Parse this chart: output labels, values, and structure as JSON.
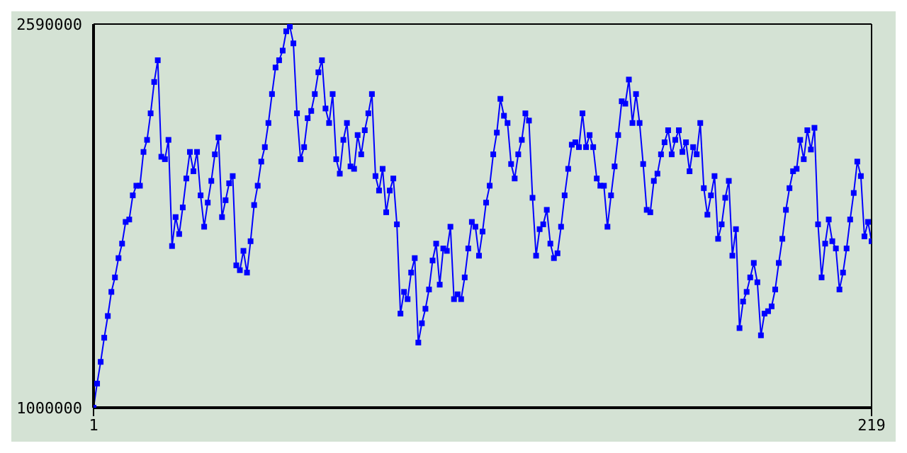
{
  "chart_data": {
    "type": "line",
    "x": [
      1,
      2,
      3,
      4,
      5,
      6,
      7,
      8,
      9,
      10,
      11,
      12,
      13,
      14,
      15,
      16,
      17,
      18,
      19,
      20,
      21,
      22,
      23,
      24,
      25,
      26,
      27,
      28,
      29,
      30,
      31,
      32,
      33,
      34,
      35,
      36,
      37,
      38,
      39,
      40,
      41,
      42,
      43,
      44,
      45,
      46,
      47,
      48,
      49,
      50,
      51,
      52,
      53,
      54,
      55,
      56,
      57,
      58,
      59,
      60,
      61,
      62,
      63,
      64,
      65,
      66,
      67,
      68,
      69,
      70,
      71,
      72,
      73,
      74,
      75,
      76,
      77,
      78,
      79,
      80,
      81,
      82,
      83,
      84,
      85,
      86,
      87,
      88,
      89,
      90,
      91,
      92,
      93,
      94,
      95,
      96,
      97,
      98,
      99,
      100,
      101,
      102,
      103,
      104,
      105,
      106,
      107,
      108,
      109,
      110,
      111,
      112,
      113,
      114,
      115,
      116,
      117,
      118,
      119,
      120,
      121,
      122,
      123,
      124,
      125,
      126,
      127,
      128,
      129,
      130,
      131,
      132,
      133,
      134,
      135,
      136,
      137,
      138,
      139,
      140,
      141,
      142,
      143,
      144,
      145,
      146,
      147,
      148,
      149,
      150,
      151,
      152,
      153,
      154,
      155,
      156,
      157,
      158,
      159,
      160,
      161,
      162,
      163,
      164,
      165,
      166,
      167,
      168,
      169,
      170,
      171,
      172,
      173,
      174,
      175,
      176,
      177,
      178,
      179,
      180,
      181,
      182,
      183,
      184,
      185,
      186,
      187,
      188,
      189,
      190,
      191,
      192,
      193,
      194,
      195,
      196,
      197,
      198,
      199,
      200,
      201,
      202,
      203,
      204,
      205,
      206,
      207,
      208,
      209,
      210,
      211,
      212,
      213,
      214,
      215,
      216,
      217,
      218,
      219
    ],
    "series": [
      {
        "color": "#0000ff",
        "values": [
          1000000,
          1100000,
          1190000,
          1290000,
          1380000,
          1480000,
          1540000,
          1620000,
          1680000,
          1770000,
          1780000,
          1880000,
          1920000,
          1920000,
          2060000,
          2110000,
          2220000,
          2350000,
          2440000,
          2040000,
          2030000,
          2110000,
          1670000,
          1790000,
          1720000,
          1830000,
          1950000,
          2060000,
          1980000,
          2060000,
          1880000,
          1750000,
          1850000,
          1940000,
          2050000,
          2120000,
          1790000,
          1860000,
          1930000,
          1960000,
          1590000,
          1570000,
          1650000,
          1560000,
          1690000,
          1840000,
          1920000,
          2020000,
          2080000,
          2180000,
          2300000,
          2410000,
          2440000,
          2480000,
          2560000,
          2580000,
          2510000,
          2220000,
          2030000,
          2080000,
          2200000,
          2230000,
          2300000,
          2390000,
          2440000,
          2240000,
          2180000,
          2300000,
          2030000,
          1970000,
          2110000,
          2180000,
          2000000,
          1990000,
          2130000,
          2050000,
          2150000,
          2220000,
          2300000,
          1960000,
          1900000,
          1990000,
          1810000,
          1900000,
          1950000,
          1760000,
          1390000,
          1480000,
          1450000,
          1560000,
          1620000,
          1270000,
          1350000,
          1410000,
          1490000,
          1610000,
          1680000,
          1510000,
          1660000,
          1650000,
          1750000,
          1450000,
          1470000,
          1450000,
          1540000,
          1660000,
          1770000,
          1750000,
          1630000,
          1730000,
          1850000,
          1920000,
          2050000,
          2140000,
          2280000,
          2210000,
          2180000,
          2010000,
          1950000,
          2050000,
          2110000,
          2220000,
          2190000,
          1870000,
          1630000,
          1740000,
          1760000,
          1820000,
          1680000,
          1620000,
          1640000,
          1750000,
          1880000,
          1990000,
          2090000,
          2100000,
          2080000,
          2220000,
          2080000,
          2130000,
          2080000,
          1950000,
          1920000,
          1920000,
          1750000,
          1880000,
          2000000,
          2130000,
          2270000,
          2260000,
          2360000,
          2180000,
          2300000,
          2180000,
          2010000,
          1820000,
          1810000,
          1940000,
          1970000,
          2050000,
          2100000,
          2150000,
          2050000,
          2110000,
          2150000,
          2060000,
          2100000,
          1980000,
          2080000,
          2050000,
          2180000,
          1910000,
          1800000,
          1880000,
          1960000,
          1700000,
          1760000,
          1870000,
          1940000,
          1630000,
          1740000,
          1330000,
          1440000,
          1480000,
          1540000,
          1600000,
          1520000,
          1300000,
          1390000,
          1400000,
          1420000,
          1490000,
          1600000,
          1700000,
          1820000,
          1910000,
          1980000,
          1990000,
          2110000,
          2030000,
          2150000,
          2070000,
          2160000,
          1760000,
          1540000,
          1680000,
          1780000,
          1690000,
          1660000,
          1490000,
          1560000,
          1660000,
          1780000,
          1890000,
          2020000,
          1960000,
          1710000,
          1770000,
          1690000
        ]
      }
    ],
    "xlim": [
      1,
      219
    ],
    "xticks": [
      1,
      219
    ],
    "ylim": [
      1000000,
      2590000
    ],
    "yticks": [
      1000000,
      2590000
    ],
    "marker": "square",
    "line_style": "solid"
  }
}
